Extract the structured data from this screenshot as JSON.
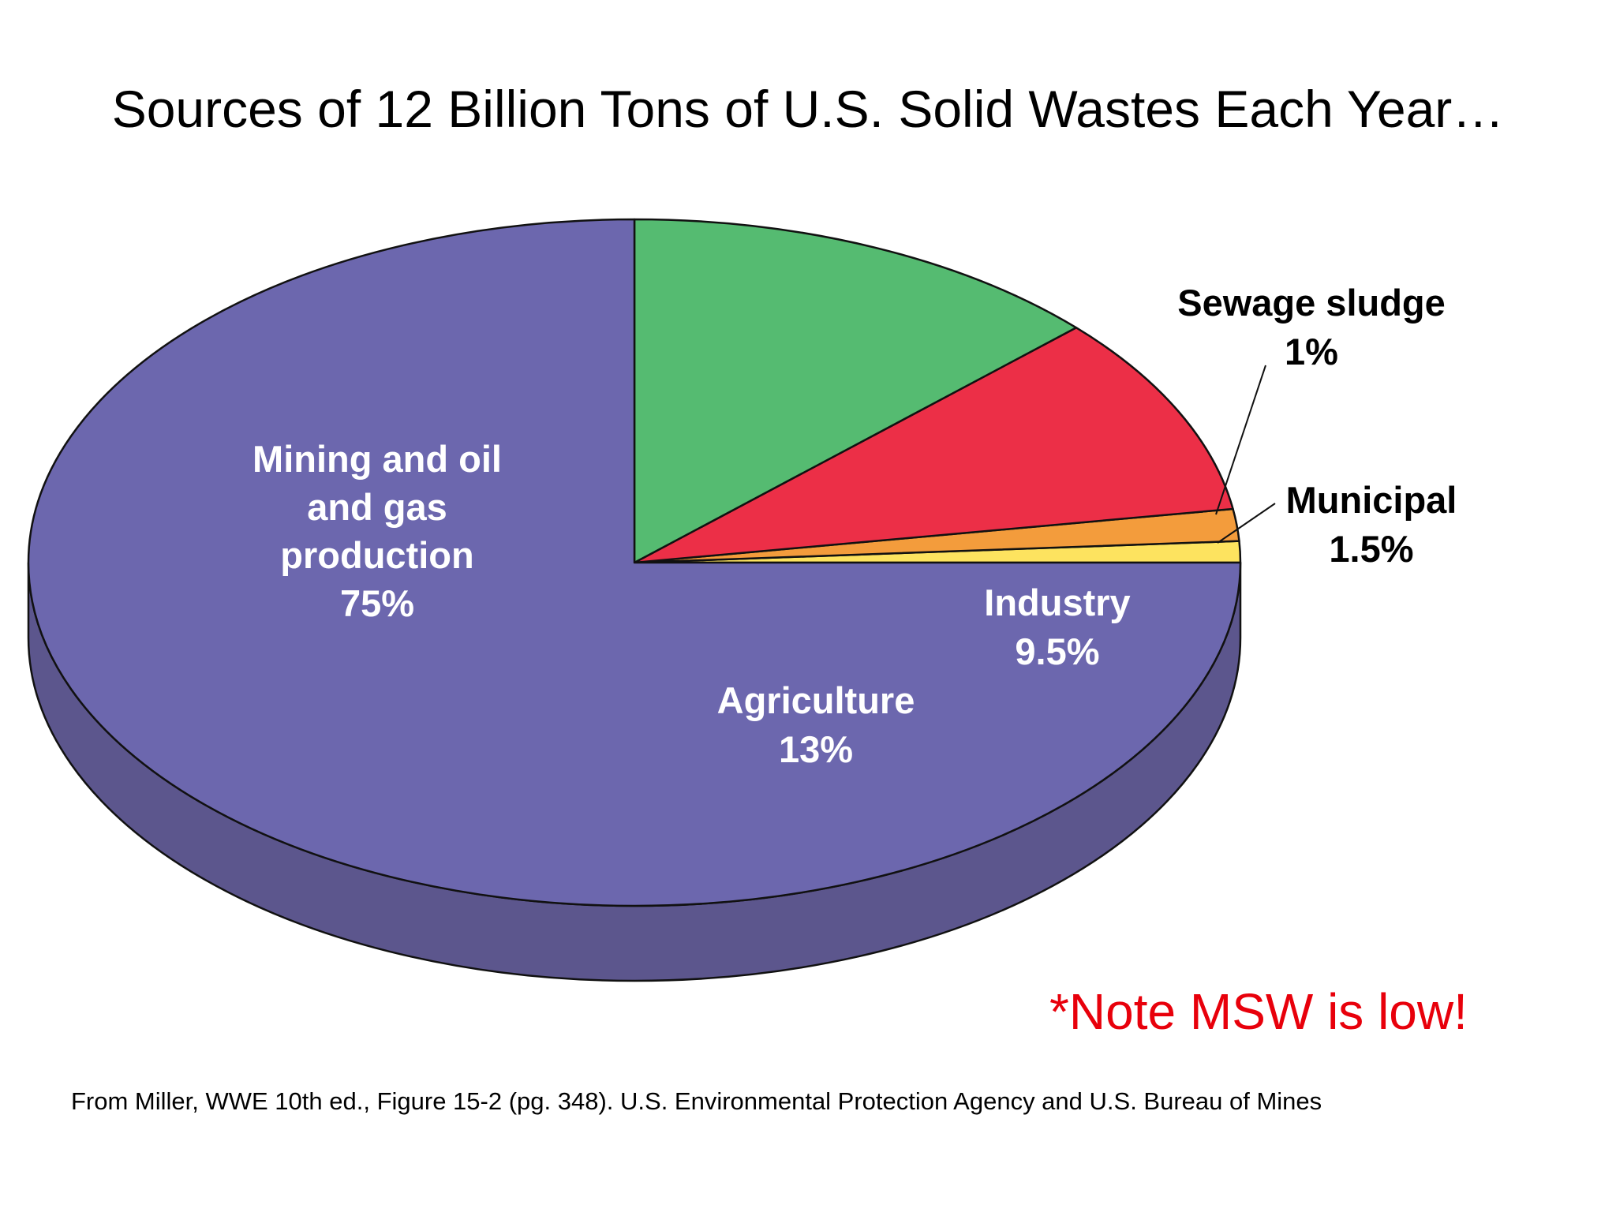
{
  "title": "Sources of 12 Billion Tons of U.S. Solid Wastes Each Year…",
  "note": "*Note MSW is low!",
  "source": "From Miller, WWE 10th ed., Figure 15-2 (pg. 348). U.S. Environmental Protection Agency and U.S. Bureau of Mines",
  "chart_data": {
    "type": "pie",
    "title": "Sources of 12 Billion Tons of U.S. Solid Wastes Each Year…",
    "unit": "%",
    "three_d": true,
    "slices": [
      {
        "name": "Sewage sludge",
        "value": 1,
        "label_lines": [
          "Sewage sludge",
          "1%"
        ],
        "color": "#fde35f",
        "side_color": "#c9b44c",
        "label_color": "#000000",
        "label_outside": true
      },
      {
        "name": "Municipal",
        "value": 1.5,
        "label_lines": [
          "Municipal",
          "1.5%"
        ],
        "color": "#f39c3c",
        "side_color": "#c27d30",
        "label_color": "#000000",
        "label_outside": true
      },
      {
        "name": "Industry",
        "value": 9.5,
        "label_lines": [
          "Industry",
          "9.5%"
        ],
        "color": "#ec2f47",
        "side_color": "#b82b3c",
        "label_color": "#ffffff",
        "label_outside": false
      },
      {
        "name": "Agriculture",
        "value": 13,
        "label_lines": [
          "Agriculture",
          "13%"
        ],
        "color": "#55bb71",
        "side_color": "#48985f",
        "label_color": "#ffffff",
        "label_outside": false
      },
      {
        "name": "Mining and oil and gas production",
        "value": 75,
        "label_lines": [
          "Mining and oil",
          "and gas",
          "production",
          "75%"
        ],
        "color": "#6c67ae",
        "side_color": "#5c568d",
        "label_color": "#ffffff",
        "label_outside": false
      }
    ]
  }
}
